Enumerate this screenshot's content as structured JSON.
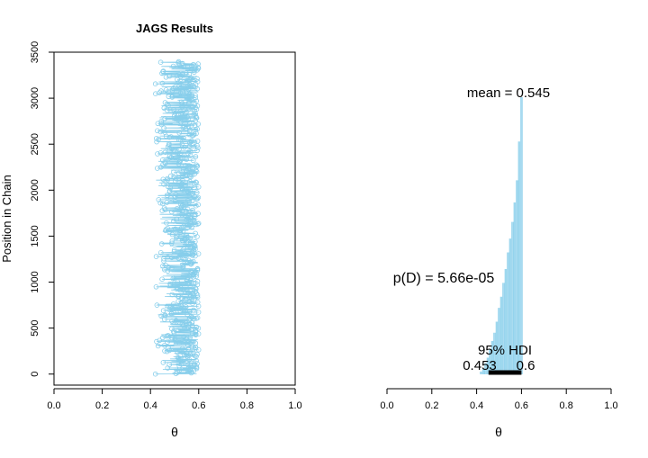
{
  "chart_data": [
    {
      "type": "scatter",
      "title": "JAGS Results",
      "xlabel": "θ",
      "ylabel": "Position in Chain",
      "xlim": [
        0,
        1
      ],
      "ylim": [
        -120,
        3500
      ],
      "xticks": [
        "0.0",
        "0.2",
        "0.4",
        "0.6",
        "0.8",
        "1.0"
      ],
      "yticks": [
        "0",
        "500",
        "1000",
        "1500",
        "2000",
        "2500",
        "3000",
        "3500"
      ],
      "n_samples": 3400,
      "theta_range": [
        0.42,
        0.6
      ],
      "point_color": "#87CEEB",
      "grid": false
    },
    {
      "type": "bar",
      "xlabel": "θ",
      "xlim": [
        0,
        1
      ],
      "xticks": [
        "0.0",
        "0.2",
        "0.4",
        "0.6",
        "0.8",
        "1.0"
      ],
      "bar_color": "#87CEEB",
      "x": [
        0.42,
        0.43,
        0.44,
        0.45,
        0.46,
        0.47,
        0.48,
        0.49,
        0.5,
        0.51,
        0.52,
        0.53,
        0.54,
        0.55,
        0.56,
        0.57,
        0.58,
        0.59,
        0.6
      ],
      "values": [
        0.01,
        0.02,
        0.04,
        0.06,
        0.09,
        0.12,
        0.15,
        0.19,
        0.24,
        0.28,
        0.33,
        0.38,
        0.44,
        0.49,
        0.55,
        0.62,
        0.7,
        0.84,
        1.0
      ],
      "mean_label": "mean = 0.545",
      "pd_label": "p(D) = 5.66e-05",
      "hdi_label": "95% HDI",
      "hdi_low": 0.453,
      "hdi_high": 0.6,
      "hdi_low_label": "0.453",
      "hdi_high_label": "0.6"
    }
  ]
}
